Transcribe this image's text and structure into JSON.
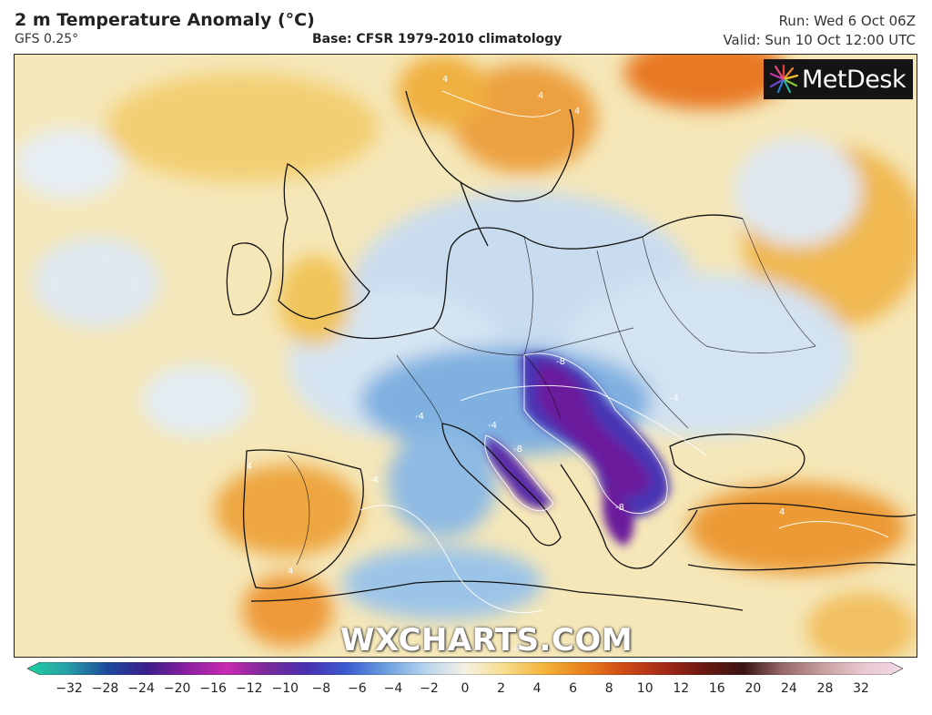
{
  "header": {
    "title": "2 m Temperature Anomaly (°C)",
    "model": "GFS 0.25°",
    "base": "Base: CFSR 1979-2010 climatology",
    "run": "Run: Wed 6 Oct 06Z",
    "valid": "Valid: Sun 10 Oct 12:00 UTC"
  },
  "branding": {
    "logo_name": "MetDesk",
    "watermark": "WXCHARTS.COM"
  },
  "legend": {
    "unit": "°C",
    "ticks": [
      "−32",
      "−28",
      "−24",
      "−20",
      "−16",
      "−12",
      "−10",
      "−8",
      "−6",
      "−4",
      "−2",
      "0",
      "2",
      "4",
      "6",
      "8",
      "10",
      "12",
      "16",
      "20",
      "24",
      "28",
      "32"
    ],
    "colors": [
      "#1fd0a0",
      "#28a0a8",
      "#1c4a9c",
      "#3a1f8a",
      "#8a1fa0",
      "#c82bb0",
      "#7a2a9a",
      "#4a2fb0",
      "#3a5ad0",
      "#6b9ee0",
      "#b8d4ef",
      "#f4f1e2",
      "#f7dc8a",
      "#f3b33a",
      "#e8801c",
      "#cf4a16",
      "#a42a18",
      "#6a1810",
      "#3a1414",
      "#9a6a6a",
      "#c8a0a0",
      "#e8c8d0",
      "#f4d8e8"
    ]
  },
  "map": {
    "region": "Europe",
    "contour_labels": [
      "4",
      "4",
      "4",
      "-4",
      "-4",
      "-4",
      "-8",
      "-8",
      "-8",
      "-4",
      "4",
      "4",
      "4",
      "-4"
    ]
  }
}
